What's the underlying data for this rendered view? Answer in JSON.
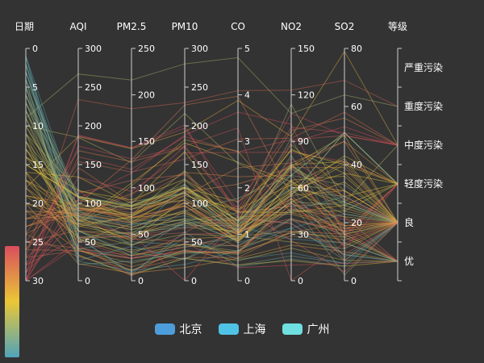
{
  "colors": {
    "background": "#333333",
    "beijing": "#4e9ddb",
    "shanghai": "#4fc3e6",
    "guangzhou": "#6fdfe0",
    "visual_map": [
      "#d94e5d",
      "#eac736",
      "#50a3ba"
    ]
  },
  "legend": [
    {
      "name": "北京",
      "color": "#4e9ddb"
    },
    {
      "name": "上海",
      "color": "#4fc3e6"
    },
    {
      "name": "广州",
      "color": "#6fdfe0"
    }
  ],
  "chart_data": {
    "type": "parallel",
    "axes": [
      {
        "name": "日期",
        "min": 0,
        "max": 30,
        "ticks": [
          0,
          5,
          10,
          15,
          20,
          25,
          30
        ],
        "inverse": true
      },
      {
        "name": "AQI",
        "min": 0,
        "max": 300,
        "ticks": [
          0,
          50,
          100,
          150,
          200,
          250,
          300
        ]
      },
      {
        "name": "PM2.5",
        "min": 0,
        "max": 250,
        "ticks": [
          0,
          50,
          100,
          150,
          200,
          250
        ]
      },
      {
        "name": "PM10",
        "min": 0,
        "max": 300,
        "ticks": [
          0,
          50,
          100,
          150,
          200,
          250,
          300
        ]
      },
      {
        "name": "CO",
        "min": 0,
        "max": 5,
        "ticks": [
          0,
          1,
          2,
          3,
          4,
          5
        ]
      },
      {
        "name": "NO2",
        "min": 0,
        "max": 150,
        "ticks": [
          0,
          30,
          60,
          90,
          120,
          150
        ]
      },
      {
        "name": "SO2",
        "min": 0,
        "max": 80,
        "ticks": [
          0,
          20,
          40,
          60,
          80
        ]
      },
      {
        "name": "等级",
        "type": "category",
        "categories": [
          "优",
          "良",
          "轻度污染",
          "中度污染",
          "重度污染",
          "严重污染"
        ]
      }
    ],
    "visual_map": {
      "dimension": "日期",
      "min": 0,
      "max": 30
    },
    "series": [
      {
        "name": "北京",
        "data": [
          [
            1,
            55,
            9,
            56,
            0.46,
            18,
            6,
            "良"
          ],
          [
            2,
            25,
            11,
            21,
            0.65,
            34,
            9,
            "优"
          ],
          [
            3,
            56,
            7,
            63,
            0.3,
            14,
            5,
            "良"
          ],
          [
            4,
            33,
            7,
            29,
            0.33,
            16,
            6,
            "优"
          ],
          [
            5,
            42,
            24,
            44,
            0.76,
            40,
            16,
            "优"
          ],
          [
            6,
            82,
            58,
            90,
            1.77,
            68,
            33,
            "良"
          ],
          [
            7,
            74,
            49,
            77,
            1.46,
            48,
            27,
            "良"
          ],
          [
            8,
            78,
            55,
            80,
            1.29,
            59,
            29,
            "良"
          ],
          [
            9,
            267,
            216,
            280,
            4.8,
            108,
            64,
            "重度污染"
          ],
          [
            10,
            185,
            127,
            216,
            2.52,
            61,
            27,
            "中度污染"
          ],
          [
            11,
            39,
            19,
            38,
            0.57,
            31,
            15,
            "优"
          ],
          [
            12,
            41,
            11,
            40,
            0.43,
            21,
            7,
            "优"
          ],
          [
            13,
            64,
            38,
            74,
            1.04,
            46,
            22,
            "良"
          ],
          [
            14,
            108,
            79,
            120,
            1.7,
            75,
            41,
            "轻度污染"
          ],
          [
            15,
            108,
            63,
            116,
            1.48,
            44,
            26,
            "轻度污染"
          ],
          [
            16,
            33,
            6,
            29,
            0.34,
            13,
            5,
            "优"
          ],
          [
            17,
            94,
            66,
            110,
            1.54,
            62,
            31,
            "良"
          ],
          [
            18,
            186,
            142,
            192,
            3.88,
            93,
            79,
            "中度污染"
          ],
          [
            19,
            57,
            31,
            54,
            0.96,
            32,
            14,
            "良"
          ],
          [
            20,
            22,
            8,
            17,
            0.48,
            23,
            10,
            "优"
          ],
          [
            21,
            39,
            15,
            36,
            0.61,
            29,
            13,
            "优"
          ],
          [
            22,
            94,
            69,
            114,
            2.08,
            73,
            39,
            "良"
          ],
          [
            23,
            99,
            73,
            110,
            2.43,
            76,
            48,
            "良"
          ],
          [
            24,
            31,
            12,
            30,
            0.5,
            32,
            16,
            "优"
          ],
          [
            25,
            42,
            27,
            43,
            1,
            53,
            22,
            "优"
          ],
          [
            26,
            154,
            117,
            157,
            3.05,
            92,
            58,
            "中度污染"
          ],
          [
            27,
            234,
            185,
            230,
            4.09,
            123,
            69,
            "重度污染"
          ],
          [
            28,
            160,
            120,
            186,
            2.77,
            91,
            50,
            "中度污染"
          ],
          [
            29,
            134,
            96,
            165,
            2.76,
            83,
            41,
            "轻度污染"
          ],
          [
            30,
            52,
            24,
            60,
            1.03,
            50,
            21,
            "良"
          ],
          [
            31,
            46,
            5,
            49,
            0.28,
            10,
            6,
            "优"
          ]
        ]
      },
      {
        "name": "上海",
        "data": [
          [
            1,
            26,
            37,
            27,
            1.163,
            27,
            13,
            "优"
          ],
          [
            2,
            85,
            62,
            71,
            1.195,
            60,
            8,
            "良"
          ],
          [
            3,
            78,
            38,
            74,
            1.363,
            37,
            7,
            "良"
          ],
          [
            4,
            21,
            21,
            36,
            0.634,
            40,
            9,
            "优"
          ],
          [
            5,
            41,
            42,
            46,
            0.915,
            81,
            13,
            "优"
          ],
          [
            6,
            56,
            52,
            69,
            1.067,
            92,
            16,
            "良"
          ],
          [
            7,
            64,
            30,
            28,
            0.924,
            51,
            2,
            "良"
          ],
          [
            8,
            55,
            48,
            74,
            1.236,
            75,
            26,
            "良"
          ],
          [
            9,
            76,
            85,
            113,
            1.237,
            114,
            27,
            "良"
          ],
          [
            10,
            91,
            81,
            104,
            1.041,
            56,
            40,
            "良"
          ],
          [
            11,
            84,
            39,
            60,
            0.964,
            25,
            11,
            "良"
          ],
          [
            12,
            64,
            51,
            101,
            0.862,
            58,
            23,
            "良"
          ],
          [
            13,
            70,
            69,
            120,
            1.198,
            65,
            36,
            "良"
          ],
          [
            14,
            77,
            105,
            178,
            2.549,
            64,
            16,
            "良"
          ],
          [
            15,
            109,
            68,
            87,
            0.996,
            74,
            29,
            "轻度污染"
          ],
          [
            16,
            73,
            68,
            97,
            0.905,
            51,
            34,
            "良"
          ],
          [
            17,
            54,
            27,
            47,
            0.592,
            53,
            12,
            "良"
          ],
          [
            18,
            51,
            61,
            97,
            0.811,
            65,
            19,
            "良"
          ],
          [
            19,
            91,
            71,
            121,
            1.374,
            43,
            18,
            "良"
          ],
          [
            20,
            73,
            102,
            182,
            2.787,
            44,
            19,
            "良"
          ],
          [
            21,
            73,
            50,
            76,
            0.717,
            31,
            20,
            "良"
          ],
          [
            22,
            84,
            94,
            140,
            2.238,
            68,
            18,
            "良"
          ],
          [
            23,
            93,
            77,
            104,
            1.165,
            53,
            7,
            "良"
          ],
          [
            24,
            99,
            130,
            227,
            3.97,
            55,
            15,
            "良"
          ],
          [
            25,
            146,
            84,
            139,
            1.094,
            40,
            17,
            "轻度污染"
          ],
          [
            26,
            113,
            108,
            137,
            1.481,
            48,
            15,
            "轻度污染"
          ],
          [
            27,
            81,
            48,
            62,
            1.619,
            26,
            3,
            "良"
          ],
          [
            28,
            56,
            48,
            68,
            1.336,
            37,
            9,
            "良"
          ],
          [
            29,
            82,
            92,
            174,
            3.29,
            0,
            13,
            "良"
          ],
          [
            30,
            106,
            116,
            188,
            3.628,
            101,
            16,
            "轻度污染"
          ],
          [
            31,
            118,
            50,
            0,
            1.383,
            76,
            11,
            "轻度污染"
          ]
        ]
      },
      {
        "name": "广州",
        "data": [
          [
            1,
            91,
            45,
            125,
            0.82,
            34,
            23,
            "良"
          ],
          [
            2,
            65,
            27,
            78,
            0.86,
            45,
            29,
            "良"
          ],
          [
            3,
            83,
            60,
            84,
            1.09,
            73,
            27,
            "良"
          ],
          [
            4,
            109,
            81,
            121,
            1.28,
            68,
            51,
            "轻度污染"
          ],
          [
            5,
            106,
            77,
            114,
            1.07,
            55,
            51,
            "轻度污染"
          ],
          [
            6,
            109,
            81,
            121,
            1.28,
            68,
            51,
            "轻度污染"
          ],
          [
            7,
            106,
            77,
            114,
            1.07,
            55,
            51,
            "轻度污染"
          ],
          [
            8,
            89,
            65,
            78,
            0.86,
            51,
            26,
            "良"
          ],
          [
            9,
            53,
            33,
            47,
            0.64,
            50,
            17,
            "良"
          ],
          [
            10,
            80,
            55,
            80,
            1.01,
            75,
            24,
            "良"
          ],
          [
            11,
            117,
            81,
            124,
            1.03,
            45,
            24,
            "轻度污染"
          ],
          [
            12,
            99,
            71,
            142,
            1.1,
            62,
            42,
            "良"
          ],
          [
            13,
            95,
            69,
            130,
            1.28,
            74,
            50,
            "良"
          ],
          [
            14,
            116,
            87,
            131,
            1.47,
            84,
            40,
            "轻度污染"
          ],
          [
            15,
            108,
            80,
            121,
            1.3,
            85,
            37,
            "轻度污染"
          ],
          [
            16,
            134,
            83,
            167,
            1.16,
            57,
            43,
            "轻度污染"
          ],
          [
            17,
            79,
            43,
            107,
            1.05,
            59,
            37,
            "良"
          ],
          [
            18,
            71,
            46,
            89,
            0.86,
            64,
            25,
            "良"
          ],
          [
            19,
            97,
            71,
            113,
            1.17,
            88,
            31,
            "良"
          ],
          [
            20,
            84,
            57,
            91,
            0.85,
            55,
            31,
            "良"
          ],
          [
            21,
            87,
            63,
            101,
            0.9,
            56,
            41,
            "良"
          ],
          [
            22,
            104,
            77,
            119,
            1.09,
            73,
            48,
            "轻度污染"
          ],
          [
            23,
            87,
            62,
            100,
            1,
            72,
            28,
            "良"
          ],
          [
            24,
            168,
            128,
            172,
            1.49,
            97,
            56,
            "中度污染"
          ],
          [
            25,
            65,
            45,
            51,
            0.74,
            39,
            17,
            "良"
          ],
          [
            26,
            39,
            24,
            38,
            0.61,
            47,
            17,
            "优"
          ],
          [
            27,
            39,
            24,
            39,
            0.59,
            50,
            19,
            "优"
          ],
          [
            28,
            93,
            68,
            96,
            1.05,
            79,
            29,
            "良"
          ],
          [
            29,
            188,
            143,
            197,
            1.66,
            99,
            51,
            "中度污染"
          ],
          [
            30,
            174,
            131,
            174,
            1.55,
            108,
            50,
            "中度污染"
          ],
          [
            31,
            187,
            143,
            201,
            1.39,
            89,
            53,
            "中度污染"
          ]
        ]
      }
    ]
  }
}
